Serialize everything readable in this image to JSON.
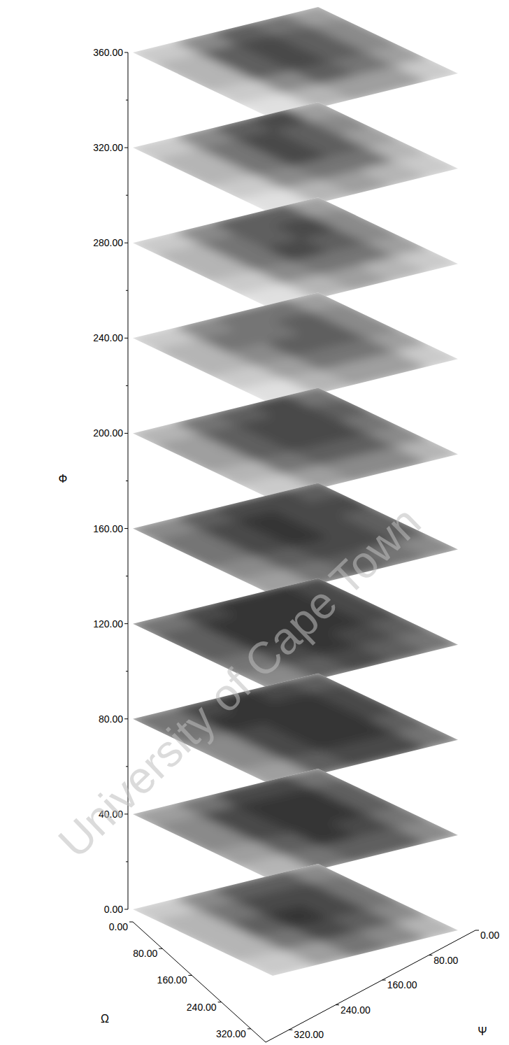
{
  "chart_data": {
    "type": "heatmap_stack",
    "x_label": "Ω",
    "y_label": "Ψ",
    "z_label": "Φ",
    "watermark": "University of Cape Town",
    "xlim": [
      0,
      360
    ],
    "xticks": [
      {
        "value": 0,
        "label": "0.00"
      },
      {
        "value": 80,
        "label": "80.00"
      },
      {
        "value": 160,
        "label": "160.00"
      },
      {
        "value": 240,
        "label": "240.00"
      },
      {
        "value": 320,
        "label": "320.00"
      }
    ],
    "ylim": [
      0,
      360
    ],
    "yticks": [
      {
        "value": 0,
        "label": "0.00"
      },
      {
        "value": 80,
        "label": "80.00"
      },
      {
        "value": 160,
        "label": "160.00"
      },
      {
        "value": 240,
        "label": "240.00"
      },
      {
        "value": 320,
        "label": "320.00"
      }
    ],
    "zlim": [
      0,
      360
    ],
    "zticks": [
      {
        "value": 0,
        "label": "0.00"
      },
      {
        "value": 40,
        "label": "40.00"
      },
      {
        "value": 80,
        "label": "80.00"
      },
      {
        "value": 120,
        "label": "120.00"
      },
      {
        "value": 160,
        "label": "160.00"
      },
      {
        "value": 200,
        "label": "200.00"
      },
      {
        "value": 240,
        "label": "240.00"
      },
      {
        "value": 280,
        "label": "280.00"
      },
      {
        "value": 320,
        "label": "320.00"
      },
      {
        "value": 360,
        "label": "360.00"
      }
    ],
    "cell_range": [
      0,
      1
    ],
    "slices": [
      {
        "z": 0,
        "cells": [
          [
            0.5,
            0.7,
            0.7,
            0.5,
            0.2
          ],
          [
            0.6,
            0.8,
            0.8,
            0.6,
            0.3
          ],
          [
            0.6,
            0.8,
            0.9,
            0.7,
            0.3
          ],
          [
            0.5,
            0.7,
            0.8,
            0.6,
            0.3
          ],
          [
            0.3,
            0.5,
            0.6,
            0.4,
            0.2
          ]
        ]
      },
      {
        "z": 40,
        "cells": [
          [
            0.6,
            0.8,
            0.8,
            0.6,
            0.4
          ],
          [
            0.7,
            0.9,
            0.9,
            0.8,
            0.5
          ],
          [
            0.7,
            0.9,
            0.9,
            0.8,
            0.5
          ],
          [
            0.6,
            0.8,
            0.9,
            0.7,
            0.4
          ],
          [
            0.5,
            0.7,
            0.7,
            0.6,
            0.3
          ]
        ]
      },
      {
        "z": 80,
        "cells": [
          [
            0.7,
            0.8,
            0.9,
            0.8,
            0.6
          ],
          [
            0.8,
            0.9,
            0.9,
            0.9,
            0.6
          ],
          [
            0.8,
            0.9,
            0.9,
            0.8,
            0.5
          ],
          [
            0.7,
            0.9,
            0.9,
            0.8,
            0.5
          ],
          [
            0.6,
            0.8,
            0.8,
            0.7,
            0.4
          ]
        ]
      },
      {
        "z": 120,
        "cells": [
          [
            0.8,
            0.9,
            0.9,
            0.8,
            0.6
          ],
          [
            0.8,
            0.9,
            0.9,
            0.9,
            0.7
          ],
          [
            0.8,
            0.9,
            0.9,
            0.9,
            0.7
          ],
          [
            0.7,
            0.8,
            0.9,
            0.8,
            0.6
          ],
          [
            0.6,
            0.7,
            0.8,
            0.7,
            0.5
          ]
        ]
      },
      {
        "z": 160,
        "cells": [
          [
            0.7,
            0.8,
            0.8,
            0.7,
            0.5
          ],
          [
            0.8,
            0.8,
            0.9,
            0.8,
            0.6
          ],
          [
            0.7,
            0.8,
            0.9,
            0.8,
            0.6
          ],
          [
            0.7,
            0.8,
            0.8,
            0.7,
            0.5
          ],
          [
            0.5,
            0.6,
            0.7,
            0.6,
            0.4
          ]
        ]
      },
      {
        "z": 200,
        "cells": [
          [
            0.6,
            0.8,
            0.7,
            0.6,
            0.3
          ],
          [
            0.7,
            0.8,
            0.8,
            0.7,
            0.4
          ],
          [
            0.6,
            0.8,
            0.8,
            0.7,
            0.4
          ],
          [
            0.5,
            0.7,
            0.7,
            0.6,
            0.3
          ],
          [
            0.3,
            0.5,
            0.5,
            0.4,
            0.2
          ]
        ]
      },
      {
        "z": 240,
        "cells": [
          [
            0.4,
            0.6,
            0.6,
            0.5,
            0.2
          ],
          [
            0.5,
            0.7,
            0.6,
            0.6,
            0.3
          ],
          [
            0.5,
            0.7,
            0.7,
            0.5,
            0.3
          ],
          [
            0.4,
            0.6,
            0.6,
            0.4,
            0.2
          ],
          [
            0.2,
            0.4,
            0.4,
            0.3,
            0.1
          ]
        ]
      },
      {
        "z": 280,
        "cells": [
          [
            0.4,
            0.7,
            0.7,
            0.5,
            0.2
          ],
          [
            0.5,
            0.8,
            0.7,
            0.6,
            0.3
          ],
          [
            0.5,
            0.7,
            0.8,
            0.6,
            0.3
          ],
          [
            0.4,
            0.6,
            0.6,
            0.5,
            0.2
          ],
          [
            0.2,
            0.3,
            0.4,
            0.3,
            0.1
          ]
        ]
      },
      {
        "z": 320,
        "cells": [
          [
            0.4,
            0.8,
            0.7,
            0.5,
            0.2
          ],
          [
            0.5,
            0.7,
            0.8,
            0.6,
            0.3
          ],
          [
            0.4,
            0.7,
            0.8,
            0.6,
            0.3
          ],
          [
            0.3,
            0.6,
            0.6,
            0.5,
            0.2
          ],
          [
            0.2,
            0.3,
            0.4,
            0.3,
            0.1
          ]
        ]
      },
      {
        "z": 360,
        "cells": [
          [
            0.4,
            0.6,
            0.7,
            0.5,
            0.2
          ],
          [
            0.5,
            0.7,
            0.8,
            0.7,
            0.3
          ],
          [
            0.5,
            0.7,
            0.8,
            0.7,
            0.3
          ],
          [
            0.4,
            0.6,
            0.7,
            0.5,
            0.2
          ],
          [
            0.2,
            0.4,
            0.4,
            0.3,
            0.1
          ]
        ]
      }
    ]
  }
}
